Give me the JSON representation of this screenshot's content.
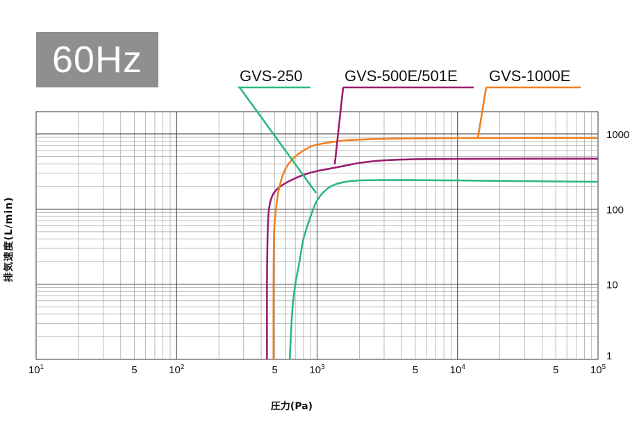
{
  "badge": {
    "text": "60Hz",
    "color": "#8f8f8f"
  },
  "chart_data": {
    "type": "line",
    "title": "",
    "xlabel": "圧力(Pa)",
    "ylabel": "排気速度(L/min)",
    "xscale": "log",
    "yscale": "log",
    "xlim": [
      10,
      100000
    ],
    "ylim": [
      1,
      3000
    ],
    "grid": true,
    "x_ticks": [
      {
        "v": 10,
        "base": "10",
        "exp": "1"
      },
      {
        "v": 50,
        "base": "5",
        "exp": ""
      },
      {
        "v": 100,
        "base": "10",
        "exp": "2"
      },
      {
        "v": 500,
        "base": "5",
        "exp": ""
      },
      {
        "v": 1000,
        "base": "10",
        "exp": "3"
      },
      {
        "v": 5000,
        "base": "5",
        "exp": ""
      },
      {
        "v": 10000,
        "base": "10",
        "exp": "4"
      },
      {
        "v": 50000,
        "base": "5",
        "exp": ""
      },
      {
        "v": 100000,
        "base": "10",
        "exp": "5"
      }
    ],
    "y_ticks": [
      {
        "v": 1,
        "label": "1"
      },
      {
        "v": 10,
        "label": "10"
      },
      {
        "v": 100,
        "label": "100"
      },
      {
        "v": 1000,
        "label": "1000"
      }
    ],
    "series": [
      {
        "name": "GVS-250",
        "color": "#2db87d",
        "x": [
          640,
          650,
          670,
          700,
          750,
          800,
          900,
          1000,
          1200,
          1500,
          2000,
          3000,
          5000,
          10000,
          30000,
          100000
        ],
        "y": [
          1,
          2,
          5,
          10,
          20,
          40,
          80,
          130,
          190,
          225,
          240,
          243,
          243,
          240,
          235,
          230
        ]
      },
      {
        "name": "GVS-500E/501E",
        "color": "#9b1e6f",
        "x": [
          440,
          440,
          445,
          455,
          480,
          530,
          620,
          800,
          1000,
          1500,
          2000,
          3000,
          5000,
          10000,
          30000,
          100000
        ],
        "y": [
          1,
          10,
          50,
          100,
          150,
          190,
          230,
          285,
          320,
          370,
          410,
          445,
          460,
          465,
          468,
          468
        ]
      },
      {
        "name": "GVS-1000E",
        "color": "#f08020",
        "x": [
          490,
          490,
          495,
          510,
          540,
          600,
          700,
          850,
          1000,
          1500,
          2000,
          3000,
          5000,
          10000,
          30000,
          100000
        ],
        "y": [
          1,
          10,
          50,
          100,
          200,
          350,
          500,
          640,
          720,
          810,
          840,
          860,
          870,
          880,
          885,
          885
        ]
      }
    ]
  }
}
